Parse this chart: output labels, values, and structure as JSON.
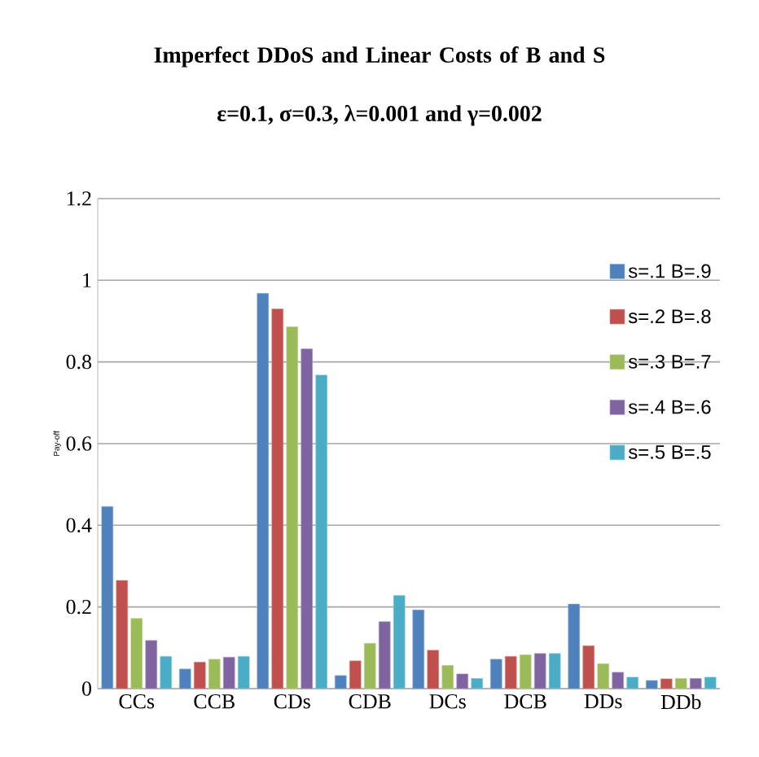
{
  "chart_data": {
    "type": "bar",
    "title": "Imperfect DDoS and Linear Costs of B and S",
    "subtitle": "ε=0.1, σ=0.3, λ=0.001 and γ=0.002",
    "ylabel": "Pay-off",
    "categories": [
      "CCs",
      "CCB",
      "CDs",
      "CDB",
      "DCs",
      "DCB",
      "DDs",
      "DDb"
    ],
    "series": [
      {
        "name": "s=.1 B=.9",
        "color": "#4f81bd",
        "values": [
          0.446,
          0.048,
          0.968,
          0.032,
          0.193,
          0.072,
          0.207,
          0.02
        ]
      },
      {
        "name": "s=.2 B=.8",
        "color": "#c0504d",
        "values": [
          0.265,
          0.065,
          0.93,
          0.068,
          0.094,
          0.079,
          0.105,
          0.024
        ]
      },
      {
        "name": "s=.3 B=.7",
        "color": "#9bbb59",
        "values": [
          0.172,
          0.072,
          0.886,
          0.111,
          0.057,
          0.083,
          0.061,
          0.025
        ]
      },
      {
        "name": "s=.4 B=.6",
        "color": "#8064a2",
        "values": [
          0.118,
          0.077,
          0.832,
          0.164,
          0.036,
          0.086,
          0.04,
          0.025
        ]
      },
      {
        "name": "s=.5 B=.5",
        "color": "#4bacc6",
        "values": [
          0.079,
          0.079,
          0.768,
          0.228,
          0.025,
          0.086,
          0.028,
          0.028
        ]
      }
    ],
    "ylim": [
      0,
      1.2
    ],
    "yticks": [
      0,
      0.2,
      0.4,
      0.6,
      0.8,
      1,
      1.2
    ],
    "grid": "y",
    "legend": "right"
  }
}
